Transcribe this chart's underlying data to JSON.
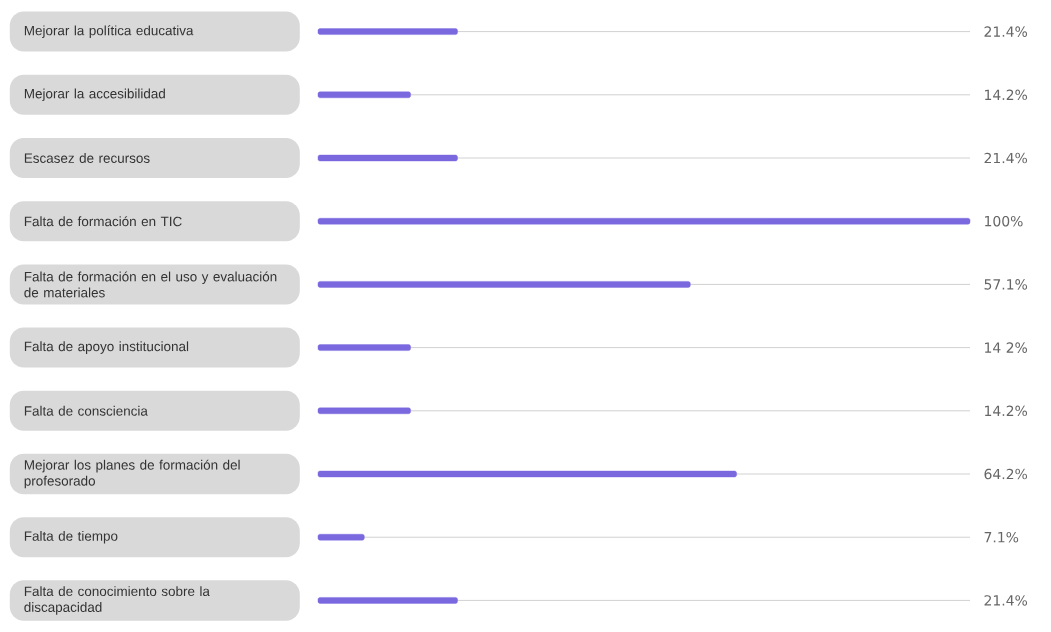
{
  "chart_data": {
    "type": "bar",
    "orientation": "horizontal",
    "categories": [
      "Mejorar la política educativa",
      "Mejorar la accesibilidad",
      "Escasez de recursos",
      "Falta de formación en TIC",
      "Falta de formación en el uso y evaluación de materiales",
      "Falta de apoyo institucional",
      "Falta de consciencia",
      "Mejorar los planes de formación del profesorado",
      "Falta de tiempo",
      "Falta de conocimiento sobre la discapacidad"
    ],
    "values": [
      21.4,
      14.2,
      21.4,
      100,
      57.1,
      14.2,
      14.2,
      64.2,
      7.1,
      21.4
    ],
    "value_labels": [
      "21.4%",
      "14.2%",
      "21.4%",
      "100%",
      "57.1%",
      "14 2%",
      "14.2%",
      "64.2%",
      "7.1%",
      "21.4%"
    ],
    "color": "#7a68df",
    "xlim": [
      0,
      100
    ],
    "grid": "y",
    "tick_labels": "y"
  }
}
